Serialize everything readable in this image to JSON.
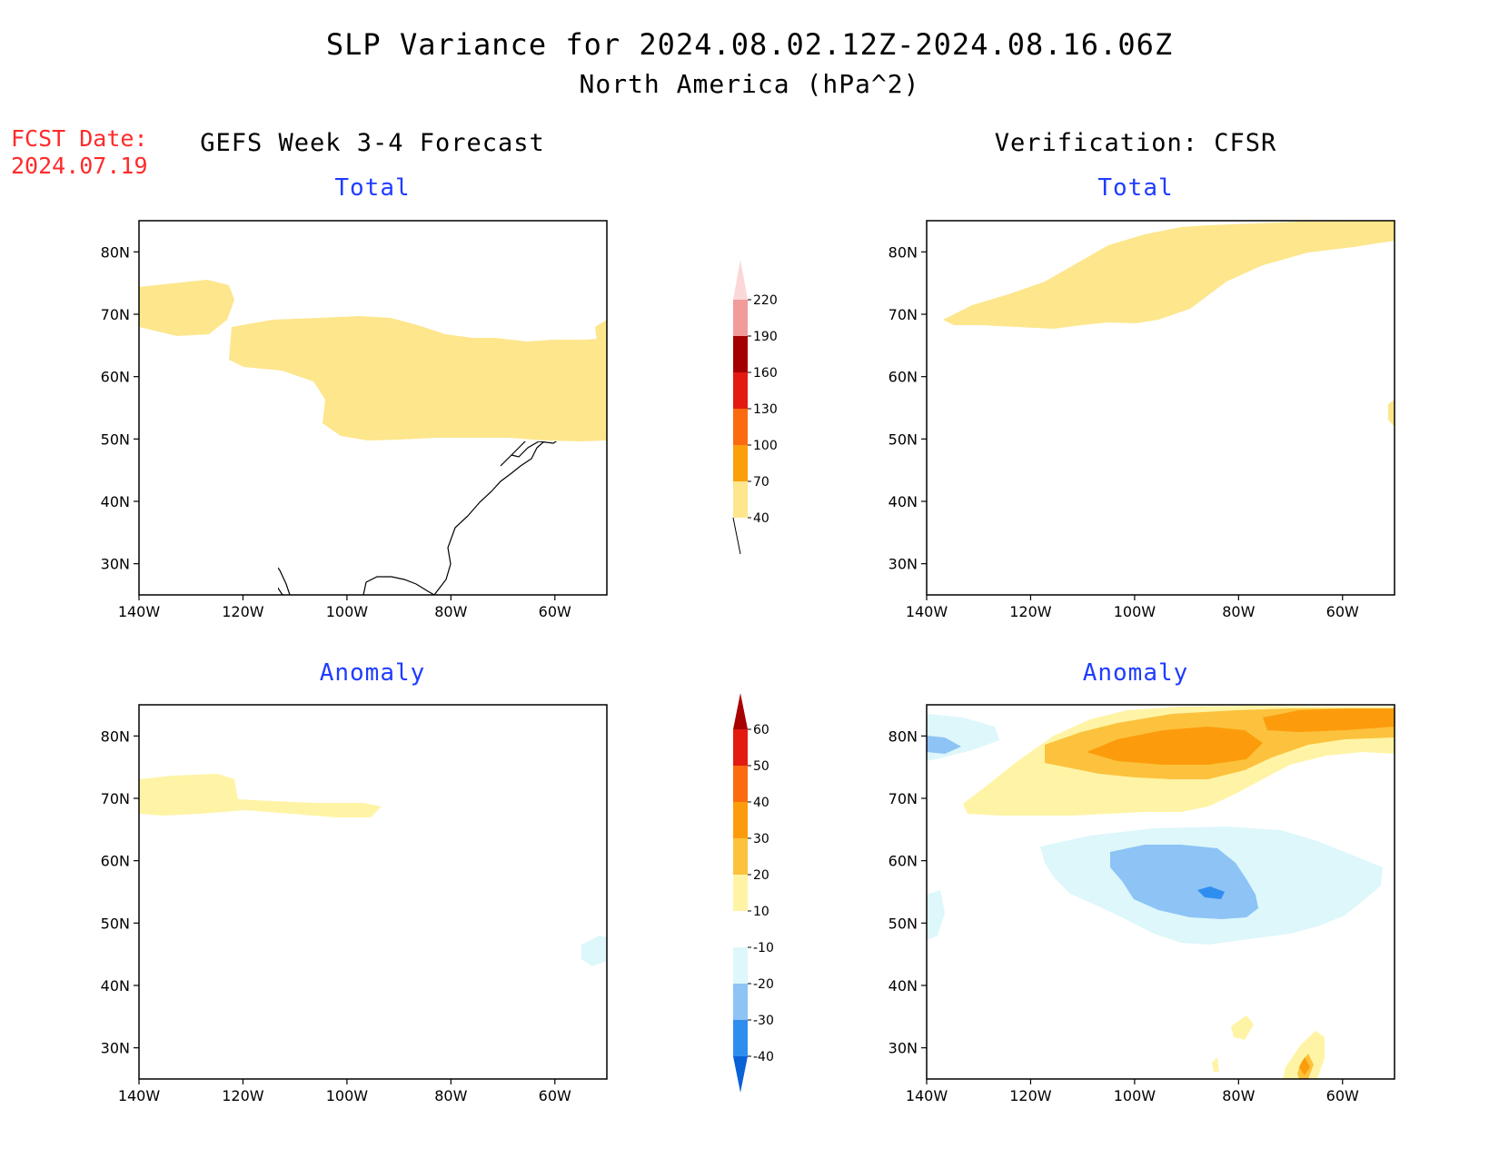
{
  "header": {
    "title_line1": "SLP Variance for 2024.08.02.12Z-2024.08.16.06Z",
    "title_line2": "North America (hPa^2)",
    "fcst_label": "FCST Date:",
    "fcst_date": "2024.07.19"
  },
  "columns": {
    "left_title": "GEFS Week 3-4 Forecast",
    "right_title": "Verification: CFSR"
  },
  "panels": {
    "top_left_title": "Total",
    "top_right_title": "Total",
    "bottom_left_title": "Anomaly",
    "bottom_right_title": "Anomaly"
  },
  "map_axes": {
    "lat_labels": [
      "80N",
      "70N",
      "60N",
      "50N",
      "40N",
      "30N"
    ],
    "lon_labels": [
      "140W",
      "120W",
      "100W",
      "80W",
      "60W"
    ],
    "lat_range": [
      25,
      85
    ],
    "lon_range": [
      -140,
      -50
    ]
  },
  "colorbars": {
    "total": {
      "labels": [
        "40",
        "70",
        "100",
        "130",
        "160",
        "190",
        "220"
      ],
      "colors": [
        "#fde68c",
        "#fb9f0a",
        "#fb6a0e",
        "#e21a10",
        "#a50000",
        "#f29b9b",
        "#fbd7d7"
      ]
    },
    "anomaly": {
      "labels": [
        "-40",
        "-30",
        "-20",
        "-10",
        "10",
        "20",
        "30",
        "40",
        "50",
        "60"
      ],
      "colors": [
        "#0b62d6",
        "#2e8ef0",
        "#8dc3f5",
        "#ddf7fb",
        "#ffffff",
        "#fff4a6",
        "#fcc23d",
        "#fc9c0c",
        "#fb6a0e",
        "#e21a10",
        "#a80000"
      ]
    }
  }
}
